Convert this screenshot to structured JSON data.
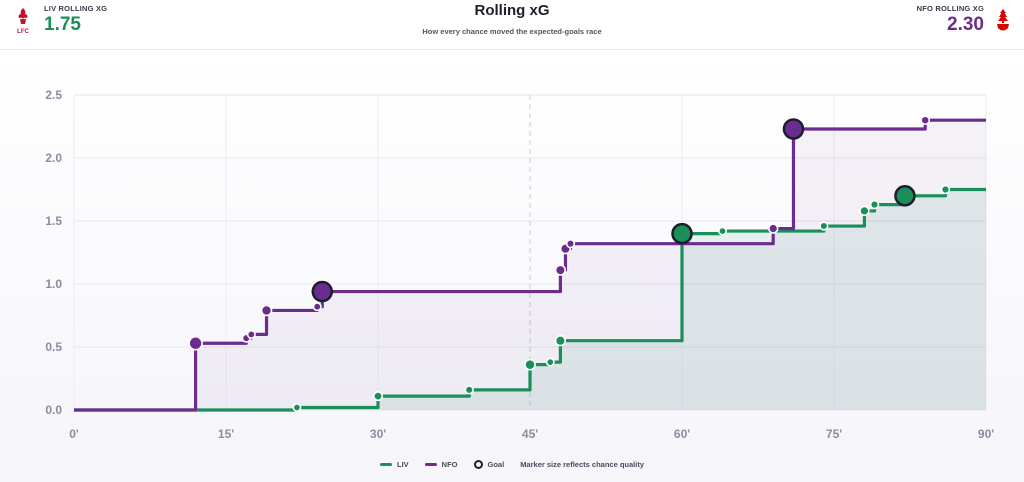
{
  "header": {
    "title": "Rolling xG",
    "subtitle": "How every chance moved the expected-goals race",
    "home": {
      "crest_text": "LFC",
      "label": "LIV ROLLING XG",
      "value": "1.75",
      "color": "#1a8f5a"
    },
    "away": {
      "label": "NFO ROLLING XG",
      "value": "2.30",
      "color": "#6a2d8f"
    }
  },
  "legend": {
    "items": [
      {
        "label": "LIV",
        "type": "line",
        "color": "#1a8f5a"
      },
      {
        "label": "NFO",
        "type": "line",
        "color": "#6a2d8f"
      },
      {
        "label": "Goal",
        "type": "ring",
        "color": "#1d1d2b"
      }
    ],
    "note": "Marker size reflects chance quality"
  },
  "chart_data": {
    "type": "line",
    "step": true,
    "x_unit": "minute",
    "xlim": [
      0,
      90
    ],
    "ylim": [
      0,
      2.5
    ],
    "x_ticks": [
      0,
      15,
      30,
      45,
      60,
      75,
      90
    ],
    "x_tick_labels": [
      "0'",
      "15'",
      "30'",
      "45'",
      "60'",
      "75'",
      "90'"
    ],
    "y_ticks": [
      0,
      0.5,
      1,
      1.5,
      2,
      2.5
    ],
    "y_tick_labels": [
      "0.0",
      "0.5",
      "1.0",
      "1.5",
      "2.0",
      "2.5"
    ],
    "halftime_minute": 45,
    "grid": true,
    "series": [
      {
        "name": "LIV",
        "color": "#1a8f5a",
        "final": 1.75,
        "events": [
          {
            "minute": 22,
            "xg": 0.02,
            "goal": false
          },
          {
            "minute": 30,
            "xg": 0.11,
            "goal": false
          },
          {
            "minute": 39,
            "xg": 0.16,
            "goal": false
          },
          {
            "minute": 45,
            "xg": 0.36,
            "goal": false
          },
          {
            "minute": 47,
            "xg": 0.38,
            "goal": false
          },
          {
            "minute": 48,
            "xg": 0.55,
            "goal": false
          },
          {
            "minute": 60,
            "xg": 1.4,
            "goal": true
          },
          {
            "minute": 64,
            "xg": 1.42,
            "goal": false
          },
          {
            "minute": 74,
            "xg": 1.46,
            "goal": false
          },
          {
            "minute": 78,
            "xg": 1.58,
            "goal": false
          },
          {
            "minute": 79,
            "xg": 1.63,
            "goal": false
          },
          {
            "minute": 82,
            "xg": 1.7,
            "goal": true
          },
          {
            "minute": 86,
            "xg": 1.75,
            "goal": false
          }
        ]
      },
      {
        "name": "NFO",
        "color": "#6a2d8f",
        "final": 2.3,
        "events": [
          {
            "minute": 12,
            "xg": 0.53,
            "goal": false
          },
          {
            "minute": 17,
            "xg": 0.57,
            "goal": false
          },
          {
            "minute": 17.5,
            "xg": 0.6,
            "goal": false
          },
          {
            "minute": 19,
            "xg": 0.79,
            "goal": false
          },
          {
            "minute": 24,
            "xg": 0.82,
            "goal": false
          },
          {
            "minute": 24.5,
            "xg": 0.94,
            "goal": true
          },
          {
            "minute": 48,
            "xg": 1.11,
            "goal": false
          },
          {
            "minute": 48.5,
            "xg": 1.28,
            "goal": false
          },
          {
            "minute": 49,
            "xg": 1.32,
            "goal": false
          },
          {
            "minute": 69,
            "xg": 1.44,
            "goal": false
          },
          {
            "minute": 71,
            "xg": 2.23,
            "goal": true
          },
          {
            "minute": 84,
            "xg": 2.3,
            "goal": false
          }
        ]
      }
    ]
  }
}
